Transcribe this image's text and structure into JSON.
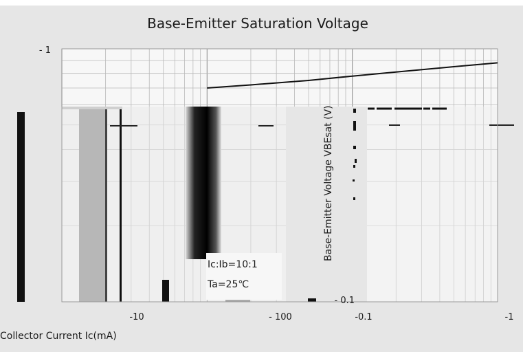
{
  "chart_data": {
    "type": "line",
    "title": "Base-Emitter Saturation Voltage",
    "xlabel": "Collector Current   Ic(mA)",
    "ylabel": "Base-Emitter Voltage   VBEsat   (V)",
    "x_scale": "log",
    "y_scale": "log",
    "xlim": [
      -1,
      -1000
    ],
    "ylim": [
      -0.1,
      -1
    ],
    "x_tick_labels": [
      "-10",
      "- 100",
      "-0.1",
      "-1"
    ],
    "y_tick_labels": [
      "- 1",
      "- 0.1"
    ],
    "annotations": [
      "Ic:Ib=10:1",
      "Ta=25℃"
    ],
    "grid": true,
    "series": [
      {
        "x": [
          -10,
          -20,
          -50,
          -100,
          -200,
          -500,
          -1000
        ],
        "y": [
          -0.7,
          -0.72,
          -0.75,
          -0.78,
          -0.81,
          -0.85,
          -0.88
        ]
      }
    ],
    "colors": {
      "curve": "#111111",
      "grid": "#b9b9b9",
      "background": "#e6e6e6",
      "panel": "#f7f7f7"
    }
  }
}
